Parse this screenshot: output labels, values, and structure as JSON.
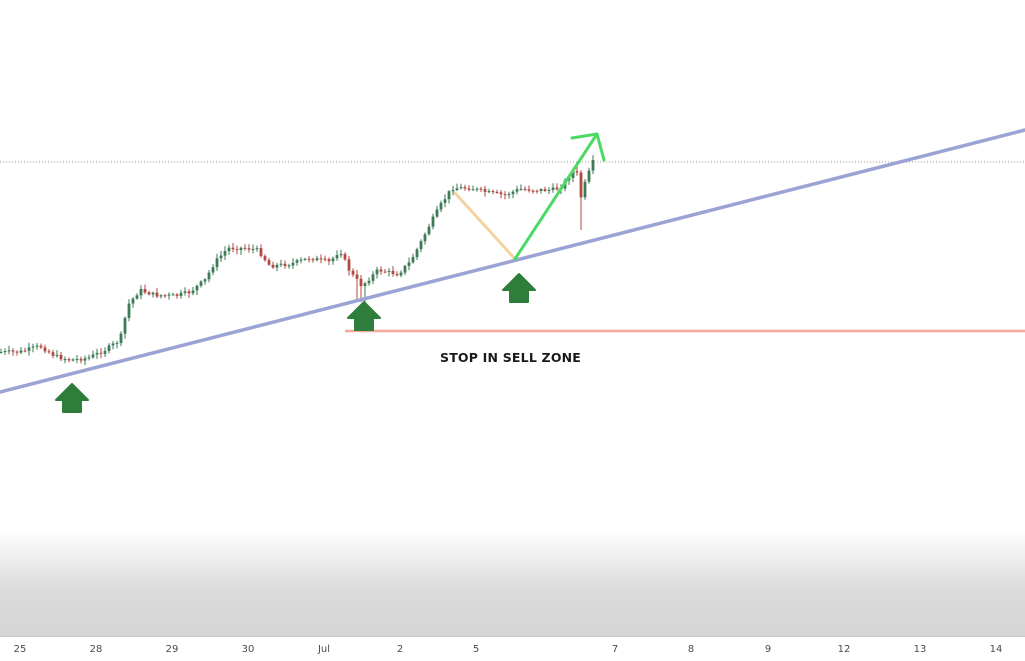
{
  "chart_data": {
    "type": "candlestick",
    "x_tick_labels": [
      "25",
      "28",
      "29",
      "30",
      "Jul",
      "2",
      "5",
      "7",
      "8",
      "9",
      "12",
      "13",
      "14"
    ],
    "annotations": {
      "stop_zone_label": "STOP IN SELL ZONE"
    },
    "colors": {
      "trendline": "#9aa3d4",
      "stop_line": "#f4a89a",
      "pullback_line": "#f5d3a0",
      "projection_arrow": "#4cd964",
      "support_arrows": "#2e7d3a",
      "candle_up": "#3e7a56",
      "candle_down": "#b04a42",
      "price_line": "#9a9a9a"
    },
    "grid": false
  }
}
